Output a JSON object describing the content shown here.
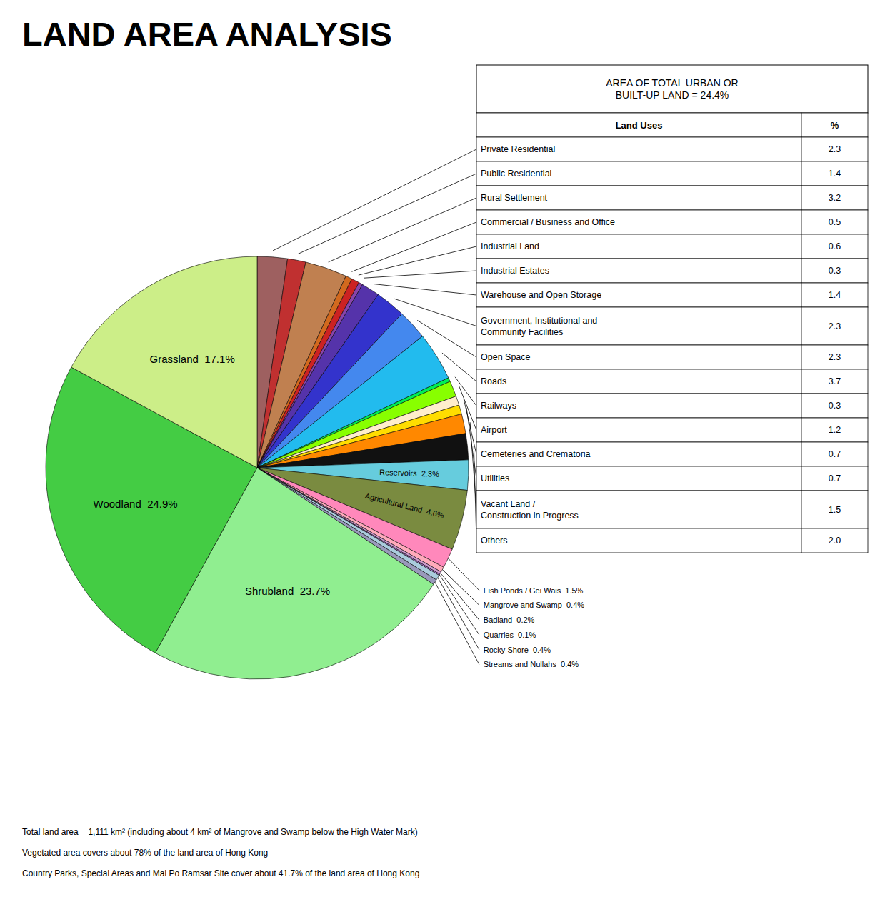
{
  "chart_data": {
    "type": "pie",
    "title": "LAND AREA ANALYSIS",
    "values": [
      2.3,
      1.4,
      3.2,
      0.5,
      0.6,
      0.3,
      1.4,
      2.3,
      2.3,
      3.7,
      0.3,
      1.2,
      0.7,
      0.7,
      1.5,
      2.0,
      2.3,
      4.6,
      1.5,
      0.4,
      0.2,
      0.1,
      0.4,
      0.4,
      23.7,
      24.9,
      17.1
    ],
    "colors": [
      "#9E6060",
      "#C03030",
      "#C08050",
      "#D2691E",
      "#CC2222",
      "#8844AA",
      "#5533AA",
      "#3333CC",
      "#4488EE",
      "#22BBEE",
      "#00EE55",
      "#88FF00",
      "#FFEECC",
      "#FFDD00",
      "#FF8800",
      "#111111",
      "#66CCDD",
      "#7A8B40",
      "#FF88BB",
      "#FFAABB",
      "#CC99CC",
      "#AA77CC",
      "#AACCDD",
      "#9999BB",
      "#90EE90",
      "#44CC44",
      "#CCEE88"
    ],
    "slice_labels": [
      null,
      null,
      null,
      null,
      null,
      null,
      null,
      null,
      null,
      null,
      null,
      null,
      null,
      null,
      null,
      null,
      "Reservoirs  2.3%",
      "Agricultural Land  4.6%",
      "Fish Ponds / Gei Wais  1.5%",
      "Mangrove and Swamp  0.4%",
      "Badland  0.2%",
      "Quarries  0.1%",
      "Rocky Shore  0.4%",
      "Streams and Nullahs  0.4%",
      "Shrubland  23.7%",
      "Woodland  24.9%",
      "Grassland  17.1%"
    ],
    "table": {
      "title": "AREA OF TOTAL URBAN OR\nBUILT-UP LAND = 24.4%",
      "header": [
        "Land Uses",
        "%"
      ],
      "rows": [
        {
          "label": "Private Residential",
          "value": 2.3
        },
        {
          "label": "Public Residential",
          "value": 1.4
        },
        {
          "label": "Rural Settlement",
          "value": 3.2
        },
        {
          "label": "Commercial / Business and Office",
          "value": 0.5
        },
        {
          "label": "Industrial Land",
          "value": 0.6
        },
        {
          "label": "Industrial Estates",
          "value": 0.3
        },
        {
          "label": "Warehouse and Open Storage",
          "value": 1.4
        },
        {
          "label": "Government, Institutional and\nCommunity Facilities",
          "value": 2.3
        },
        {
          "label": "Open Space",
          "value": 2.3
        },
        {
          "label": "Roads",
          "value": 3.7
        },
        {
          "label": "Railways",
          "value": 0.3
        },
        {
          "label": "Airport",
          "value": 1.2
        },
        {
          "label": "Cemeteries and Crematoria",
          "value": 0.7
        },
        {
          "label": "Utilities",
          "value": 0.7
        },
        {
          "label": "Vacant Land /\nConstruction in Progress",
          "value": 1.5
        },
        {
          "label": "Others",
          "value": 2.0,
          "value_label": "2.0"
        }
      ]
    },
    "footnotes": [
      "Total land area = 1,111 km² (including about 4 km² of Mangrove and Swamp below the High Water Mark)",
      "Vegetated area covers about 78% of the land area of Hong Kong",
      "Country Parks, Special Areas and Mai Po Ramsar Site cover about 41.7% of the land area of Hong Kong"
    ]
  }
}
